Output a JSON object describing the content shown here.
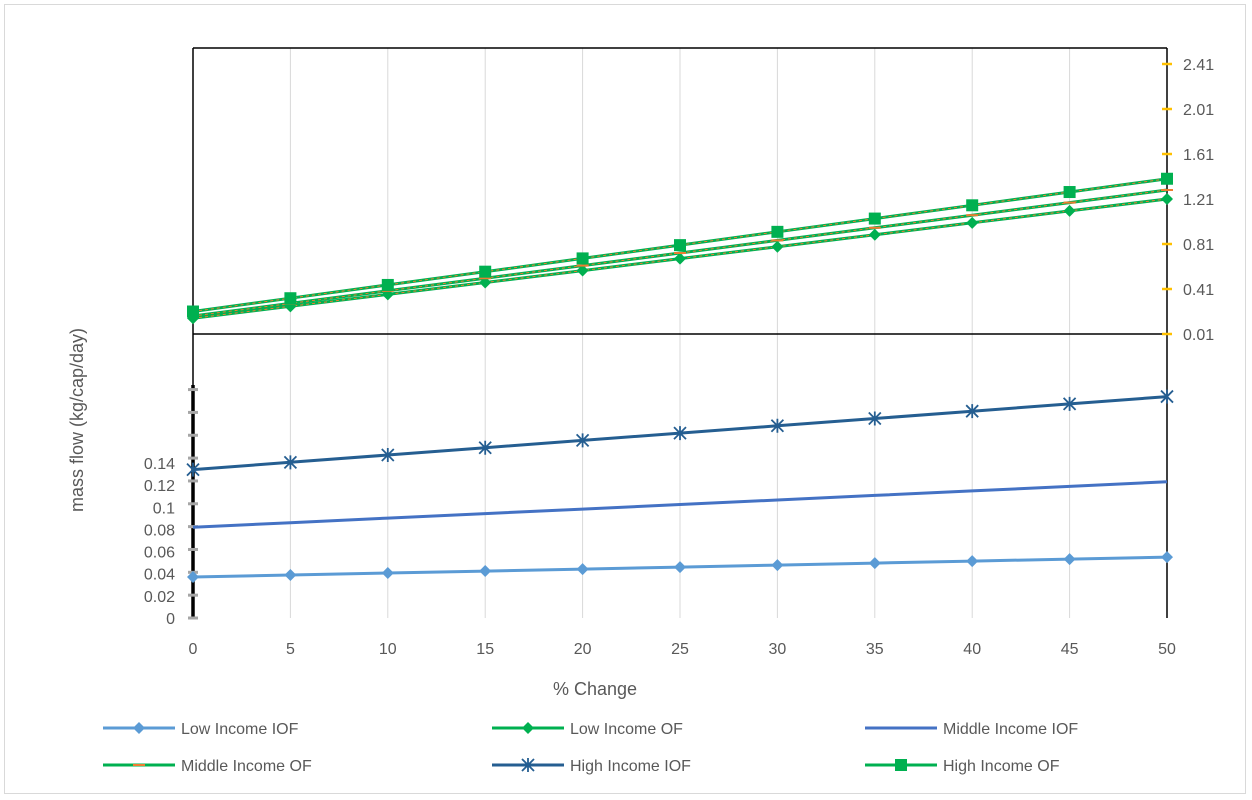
{
  "chart_data": {
    "type": "line",
    "xlabel": "% Change",
    "ylabel": "mass flow (kg/cap/day)",
    "x": [
      0,
      5,
      10,
      15,
      20,
      25,
      30,
      35,
      40,
      45,
      50
    ],
    "x_ticks": [
      "0",
      "5",
      "10",
      "15",
      "20",
      "25",
      "30",
      "35",
      "40",
      "45",
      "50"
    ],
    "x_range": [
      0,
      50
    ],
    "grid": "vertical gridlines",
    "legend_position": "bottom",
    "primary_axis": {
      "side": "left",
      "ticks": [
        "0",
        "0.02",
        "0.04",
        "0.06",
        "0.08",
        "0.1",
        "0.12",
        "0.14"
      ],
      "range": [
        0,
        0.2
      ]
    },
    "secondary_axis": {
      "side": "right",
      "ticks": [
        "0.01",
        "0.41",
        "0.81",
        "1.21",
        "1.61",
        "2.01",
        "2.41"
      ],
      "range": [
        0.01,
        2.61
      ]
    },
    "series": [
      {
        "name": "Low Income IOF",
        "axis": "primary",
        "color": "#5b9bd5",
        "marker": "diamond",
        "values": [
          0.037,
          0.0388,
          0.0406,
          0.0424,
          0.0442,
          0.046,
          0.0478,
          0.0496,
          0.0514,
          0.0532,
          0.055
        ]
      },
      {
        "name": "Low Income OF",
        "axis": "secondary",
        "color": "#00b050",
        "marker": "diamond",
        "dash": true,
        "values": [
          0.15,
          0.256,
          0.362,
          0.468,
          0.574,
          0.68,
          0.786,
          0.892,
          0.998,
          1.104,
          1.21
        ]
      },
      {
        "name": "Middle Income IOF",
        "axis": "primary",
        "color": "#4472c4",
        "marker": "none",
        "values": [
          0.082,
          0.0861,
          0.0902,
          0.0943,
          0.0984,
          0.1025,
          0.1066,
          0.1107,
          0.1148,
          0.1189,
          0.123
        ]
      },
      {
        "name": "Middle Income OF",
        "axis": "secondary",
        "color": "#00b050",
        "marker": "dash",
        "values": [
          0.17,
          0.282,
          0.394,
          0.506,
          0.618,
          0.73,
          0.842,
          0.954,
          1.066,
          1.178,
          1.29
        ]
      },
      {
        "name": "High Income IOF",
        "axis": "primary",
        "color": "#255e91",
        "marker": "star",
        "values": [
          0.134,
          0.1406,
          0.1472,
          0.1538,
          0.1604,
          0.167,
          0.1736,
          0.1802,
          0.1868,
          0.1934,
          0.2
        ]
      },
      {
        "name": "High Income OF",
        "axis": "secondary",
        "color": "#00b050",
        "marker": "square",
        "values": [
          0.21,
          0.328,
          0.446,
          0.564,
          0.682,
          0.8,
          0.918,
          1.036,
          1.154,
          1.272,
          1.39
        ]
      }
    ]
  }
}
